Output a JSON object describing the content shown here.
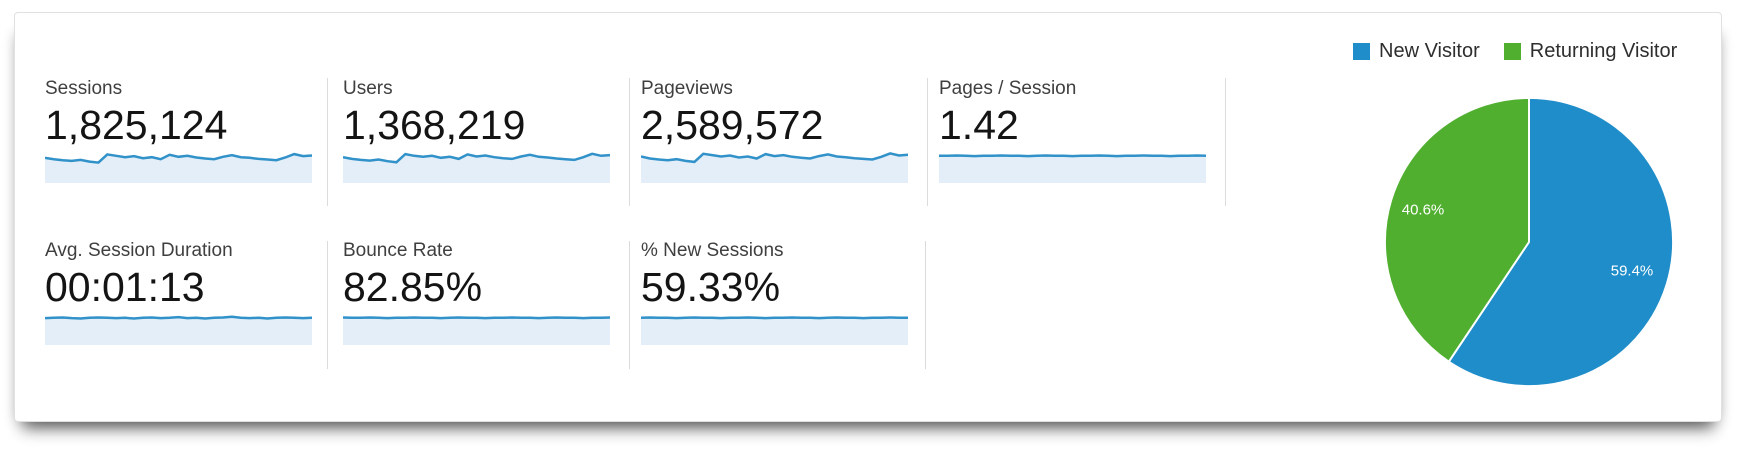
{
  "metrics": [
    {
      "id": "sessions",
      "label": "Sessions",
      "value": "1,825,124"
    },
    {
      "id": "users",
      "label": "Users",
      "value": "1,368,219"
    },
    {
      "id": "pageviews",
      "label": "Pageviews",
      "value": "2,589,572"
    },
    {
      "id": "pages-per-session",
      "label": "Pages / Session",
      "value": "1.42"
    },
    {
      "id": "avg-session-duration",
      "label": "Avg. Session Duration",
      "value": "00:01:13"
    },
    {
      "id": "bounce-rate",
      "label": "Bounce Rate",
      "value": "82.85%"
    },
    {
      "id": "pct-new-sessions",
      "label": "% New Sessions",
      "value": "59.33%"
    }
  ],
  "legend": [
    {
      "label": "New Visitor",
      "color": "#1f8dc9"
    },
    {
      "label": "Returning Visitor",
      "color": "#50af2e"
    }
  ],
  "colors": {
    "spark_line": "#3191c9",
    "spark_fill": "#e4eef8",
    "divider": "#dcdcdc"
  },
  "chart_data": {
    "pie": {
      "type": "pie",
      "legend_position": "top",
      "start_angle": "top",
      "direction": "clockwise",
      "slice_border_color": "#ffffff",
      "slices": [
        {
          "label": "New Visitor",
          "value": 59.4,
          "display": "59.4%",
          "color": "#1f8dc9"
        },
        {
          "label": "Returning Visitor",
          "value": 40.6,
          "display": "40.6%",
          "color": "#50af2e"
        }
      ]
    },
    "sparklines": {
      "type": "area",
      "note": "one sparkline per scorecard metric, same order as metrics[]",
      "series": [
        {
          "name": "Sessions",
          "values": [
            74,
            70,
            67,
            65,
            68,
            63,
            60,
            84,
            80,
            76,
            79,
            73,
            76,
            70,
            83,
            77,
            80,
            75,
            72,
            70,
            77,
            82,
            76,
            74,
            71,
            69,
            67,
            75,
            85,
            79,
            81
          ]
        },
        {
          "name": "Users",
          "values": [
            76,
            71,
            68,
            66,
            69,
            64,
            61,
            85,
            80,
            77,
            80,
            74,
            77,
            71,
            84,
            78,
            81,
            76,
            73,
            71,
            78,
            83,
            77,
            75,
            72,
            70,
            68,
            76,
            86,
            80,
            82
          ]
        },
        {
          "name": "Pageviews",
          "values": [
            78,
            72,
            69,
            67,
            70,
            65,
            62,
            86,
            82,
            78,
            81,
            75,
            78,
            72,
            85,
            79,
            82,
            77,
            74,
            72,
            79,
            84,
            78,
            76,
            73,
            71,
            69,
            77,
            87,
            81,
            83
          ]
        },
        {
          "name": "Pages / Session",
          "values": [
            80,
            80,
            81,
            80,
            79,
            80,
            80,
            81,
            80,
            80,
            79,
            80,
            81,
            80,
            80,
            79,
            80,
            80,
            81,
            80,
            79,
            80,
            80,
            81,
            80,
            80,
            79,
            80,
            80,
            81,
            80
          ]
        },
        {
          "name": "Avg. Session Duration",
          "values": [
            79,
            80,
            81,
            79,
            78,
            80,
            81,
            80,
            79,
            80,
            78,
            80,
            81,
            79,
            80,
            82,
            79,
            80,
            78,
            80,
            81,
            83,
            80,
            79,
            80,
            78,
            80,
            81,
            80,
            79,
            80
          ]
        },
        {
          "name": "Bounce Rate",
          "values": [
            81,
            80,
            80,
            81,
            80,
            79,
            80,
            80,
            81,
            80,
            80,
            79,
            80,
            81,
            80,
            80,
            79,
            80,
            80,
            81,
            80,
            80,
            79,
            80,
            81,
            80,
            80,
            79,
            80,
            80,
            81
          ]
        },
        {
          "name": "% New Sessions",
          "values": [
            80,
            81,
            80,
            80,
            79,
            80,
            81,
            80,
            80,
            79,
            80,
            80,
            81,
            80,
            79,
            80,
            80,
            81,
            80,
            80,
            79,
            80,
            81,
            80,
            80,
            79,
            80,
            80,
            81,
            80,
            80
          ]
        }
      ]
    }
  }
}
